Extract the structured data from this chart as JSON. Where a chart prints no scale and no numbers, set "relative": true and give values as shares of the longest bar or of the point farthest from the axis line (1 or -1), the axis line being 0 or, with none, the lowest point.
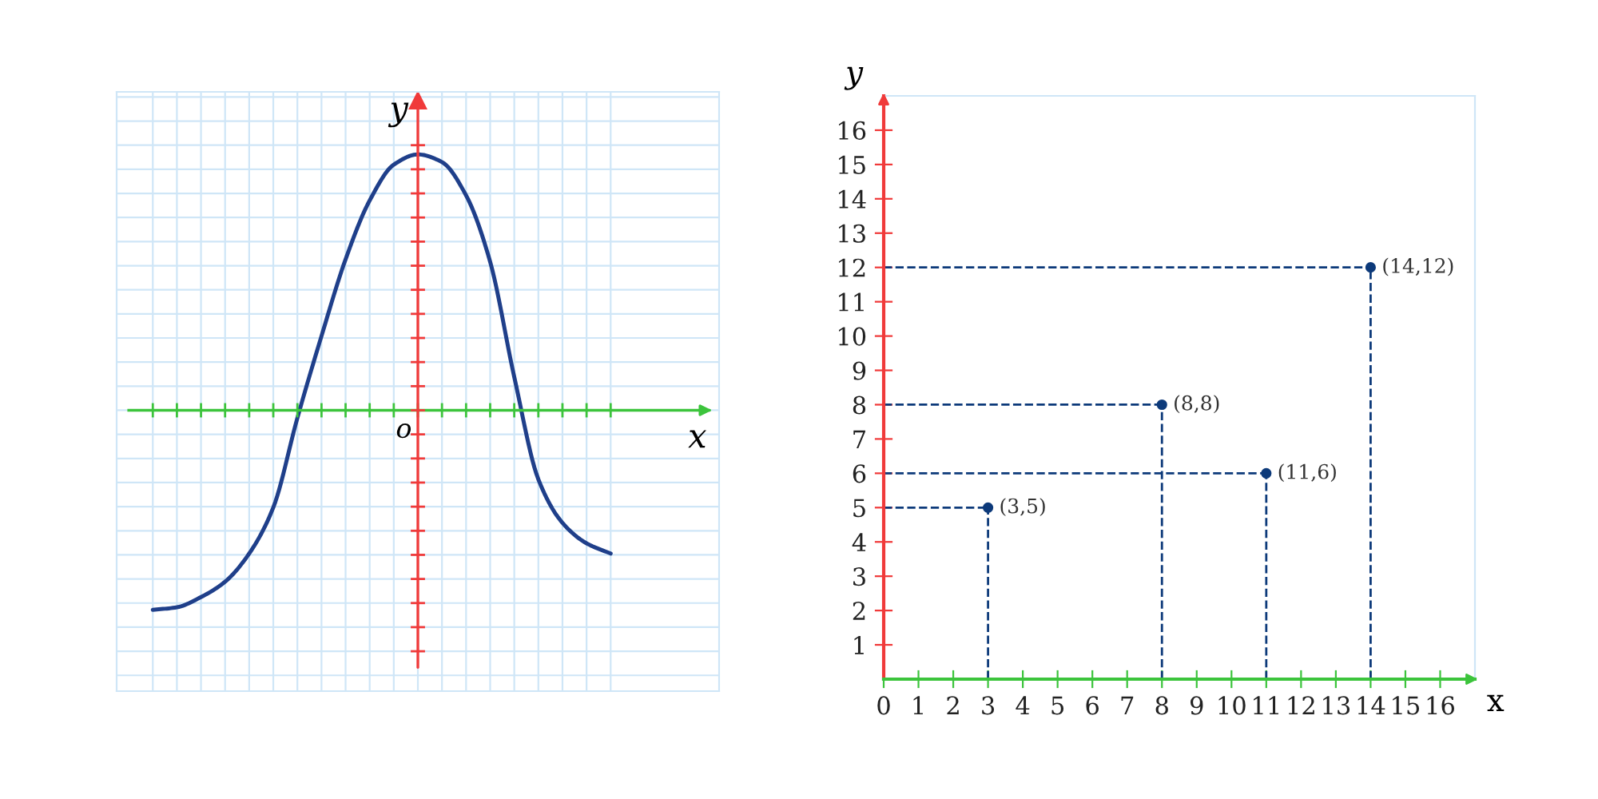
{
  "chart_data": [
    {
      "type": "line",
      "relative": true,
      "xlabel": "x",
      "ylabel": "y",
      "annotations": [
        "o"
      ],
      "grid": true,
      "color": "#1f3f8a",
      "ref_lines": [
        {
          "axis": "y",
          "value": 0,
          "color": "#3cc43c"
        }
      ],
      "categories": [
        null,
        null,
        null,
        null,
        null,
        null,
        null,
        null,
        null,
        null,
        null,
        null,
        null,
        null,
        null,
        null,
        null,
        null,
        null,
        null
      ],
      "values": [
        -0.78,
        -0.77,
        -0.73,
        -0.67,
        -0.56,
        -0.38,
        -0.03,
        0.29,
        0.59,
        0.82,
        0.96,
        1,
        0.97,
        0.84,
        0.58,
        0.13,
        -0.27,
        -0.44,
        -0.52,
        -0.56
      ]
    },
    {
      "type": "scatter",
      "xlabel": "x",
      "ylabel": "y",
      "color": "#0d3a7a",
      "marker": "circle",
      "line_style": "dashed",
      "x": [
        3,
        8,
        11,
        14
      ],
      "values": [
        5,
        8,
        6,
        12
      ],
      "annotations": [
        {
          "text": "(3,5)",
          "x": 3,
          "y": 5
        },
        {
          "text": "(8,8)",
          "x": 8,
          "y": 8
        },
        {
          "text": "(11,6)",
          "x": 11,
          "y": 6
        },
        {
          "text": "(14,12)",
          "x": 14,
          "y": 12
        }
      ],
      "xlim": [
        0,
        17
      ],
      "ylim": [
        0,
        17
      ],
      "xticks": [
        0,
        1,
        2,
        3,
        4,
        5,
        6,
        7,
        8,
        9,
        10,
        11,
        12,
        13,
        14,
        15,
        16
      ],
      "yticks": [
        1,
        2,
        3,
        4,
        5,
        6,
        7,
        8,
        9,
        10,
        11,
        12,
        13,
        14,
        15,
        16
      ]
    }
  ]
}
